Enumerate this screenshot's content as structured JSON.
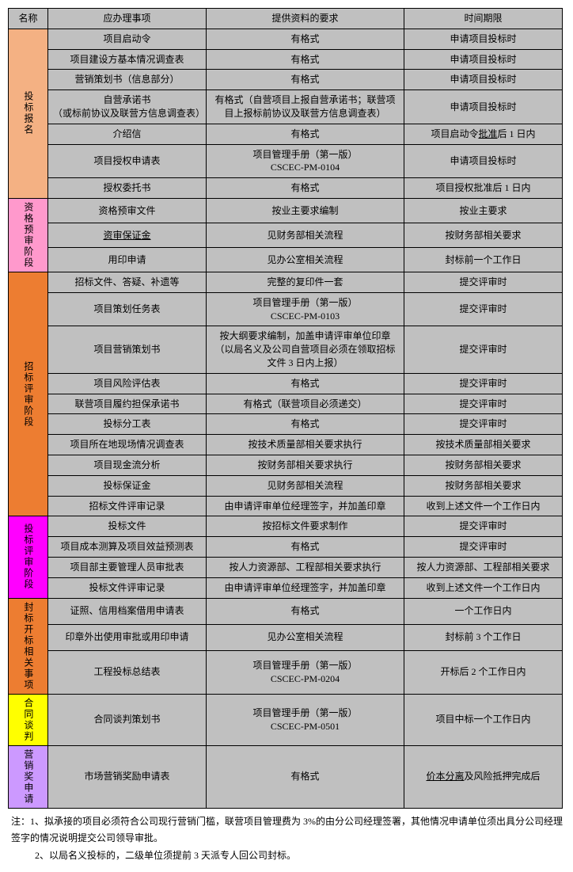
{
  "headers": [
    "名称",
    "应办理事项",
    "提供资料的要求",
    "时间期限"
  ],
  "stages": [
    {
      "label": "投标报名",
      "bg": "#f4b183",
      "rows": [
        {
          "item": "项目启动令",
          "req": "有格式",
          "time": "申请项目投标时"
        },
        {
          "item": "项目建设方基本情况调查表",
          "req": "有格式",
          "time": "申请项目投标时"
        },
        {
          "item": "营销策划书（信息部分）",
          "req": "有格式",
          "time": "申请项目投标时"
        },
        {
          "item": "自营承诺书\n（或标前协议及联营方信息调查表）",
          "req": "有格式（自营项目上报自营承诺书；联营项目上报标前协议及联营方信息调查表）",
          "time": "申请项目投标时"
        },
        {
          "item": "介绍信",
          "req": "有格式",
          "time_html": "项目启动令<span class='underline'>批准</span>后 1 日内"
        },
        {
          "item": "项目授权申请表",
          "req": "项目管理手册（第一版）\nCSCEC-PM-0104",
          "time": "申请项目投标时"
        },
        {
          "item": "授权委托书",
          "req": "有格式",
          "time": "项目授权批准后 1 日内"
        }
      ]
    },
    {
      "label": "资格预审阶段",
      "bg": "#ff99cc",
      "rows": [
        {
          "item": "资格预审文件",
          "req": "按业主要求编制",
          "time": "按业主要求"
        },
        {
          "item_html": "<span class='underline'>资审保证金</span>",
          "req": "见财务部相关流程",
          "time": "按财务部相关要求"
        },
        {
          "item": "用印申请",
          "req": "见办公室相关流程",
          "time": "封标前一个工作日"
        }
      ]
    },
    {
      "label": "招标评审阶段",
      "bg": "#ed7d31",
      "rows": [
        {
          "item": "招标文件、答疑、补遗等",
          "req": "完整的复印件一套",
          "time": "提交评审时"
        },
        {
          "item": "项目策划任务表",
          "req": "项目管理手册（第一版）\nCSCEC-PM-0103",
          "time": "提交评审时"
        },
        {
          "item": "项目营销策划书",
          "req": "按大纲要求编制，加盖申请评审单位印章（以局名义及公司自营项目必须在领取招标文件 3 日内上报）",
          "time": "提交评审时"
        },
        {
          "item": "项目风险评估表",
          "req": "有格式",
          "time": "提交评审时"
        },
        {
          "item": "联营项目履约担保承诺书",
          "req": "有格式（联营项目必须递交）",
          "time": "提交评审时"
        },
        {
          "item": "投标分工表",
          "req": "有格式",
          "time": "提交评审时"
        },
        {
          "item": "项目所在地现场情况调查表",
          "req": "按技术质量部相关要求执行",
          "time": "按技术质量部相关要求"
        },
        {
          "item": "项目现金流分析",
          "req": "按财务部相关要求执行",
          "time": "按财务部相关要求"
        },
        {
          "item": "投标保证金",
          "req": "见财务部相关流程",
          "time": "按财务部相关要求"
        },
        {
          "item": "招标文件评审记录",
          "req": "由申请评审单位经理签字，并加盖印章",
          "time": "收到上述文件一个工作日内"
        }
      ]
    },
    {
      "label": "投标评审阶段",
      "bg": "#ff00ff",
      "rows": [
        {
          "item": "投标文件",
          "req": "按招标文件要求制作",
          "time": "提交评审时"
        },
        {
          "item": "项目成本测算及项目效益预测表",
          "req": "有格式",
          "time": "提交评审时"
        },
        {
          "item": "项目部主要管理人员审批表",
          "req": "按人力资源部、工程部相关要求执行",
          "time": "按人力资源部、工程部相关要求"
        },
        {
          "item": "投标文件评审记录",
          "req": "由申请评审单位经理签字，并加盖印章",
          "time": "收到上述文件一个工作日内"
        }
      ]
    },
    {
      "label": "封标开标相关事项",
      "bg": "#ed7d31",
      "rows": [
        {
          "item": "证照、信用档案借用申请表",
          "req": "有格式",
          "time": "一个工作日内"
        },
        {
          "item": "印章外出使用审批或用印申请",
          "req": "见办公室相关流程",
          "time": "封标前 3 个工作日"
        },
        {
          "item": "工程投标总结表",
          "req": "项目管理手册（第一版）\nCSCEC-PM-0204",
          "time": "开标后 2 个工作日内"
        }
      ]
    },
    {
      "label": "合同谈判",
      "bg": "#ffff00",
      "rows": [
        {
          "item": "合同谈判策划书",
          "req": "项目管理手册（第一版）\nCSCEC-PM-0501",
          "time": "项目中标一个工作日内"
        }
      ]
    },
    {
      "label": "营销奖申请",
      "bg": "#cc99ff",
      "rows": [
        {
          "item": "市场营销奖励申请表",
          "req": "有格式",
          "time_html": "<span class='underline'>价本分离</span>及风险抵押完成后"
        }
      ]
    }
  ],
  "notes": [
    "注：1、拟承接的项目必须符合公司现行营销门槛，联营项目管理费为 3%的由分公司经理签署，其他情况申请单位须出具分公司经理签字的情况说明提交公司领导审批。",
    "2、以局名义投标的，二级单位须提前 3 天派专人回公司封标。"
  ]
}
